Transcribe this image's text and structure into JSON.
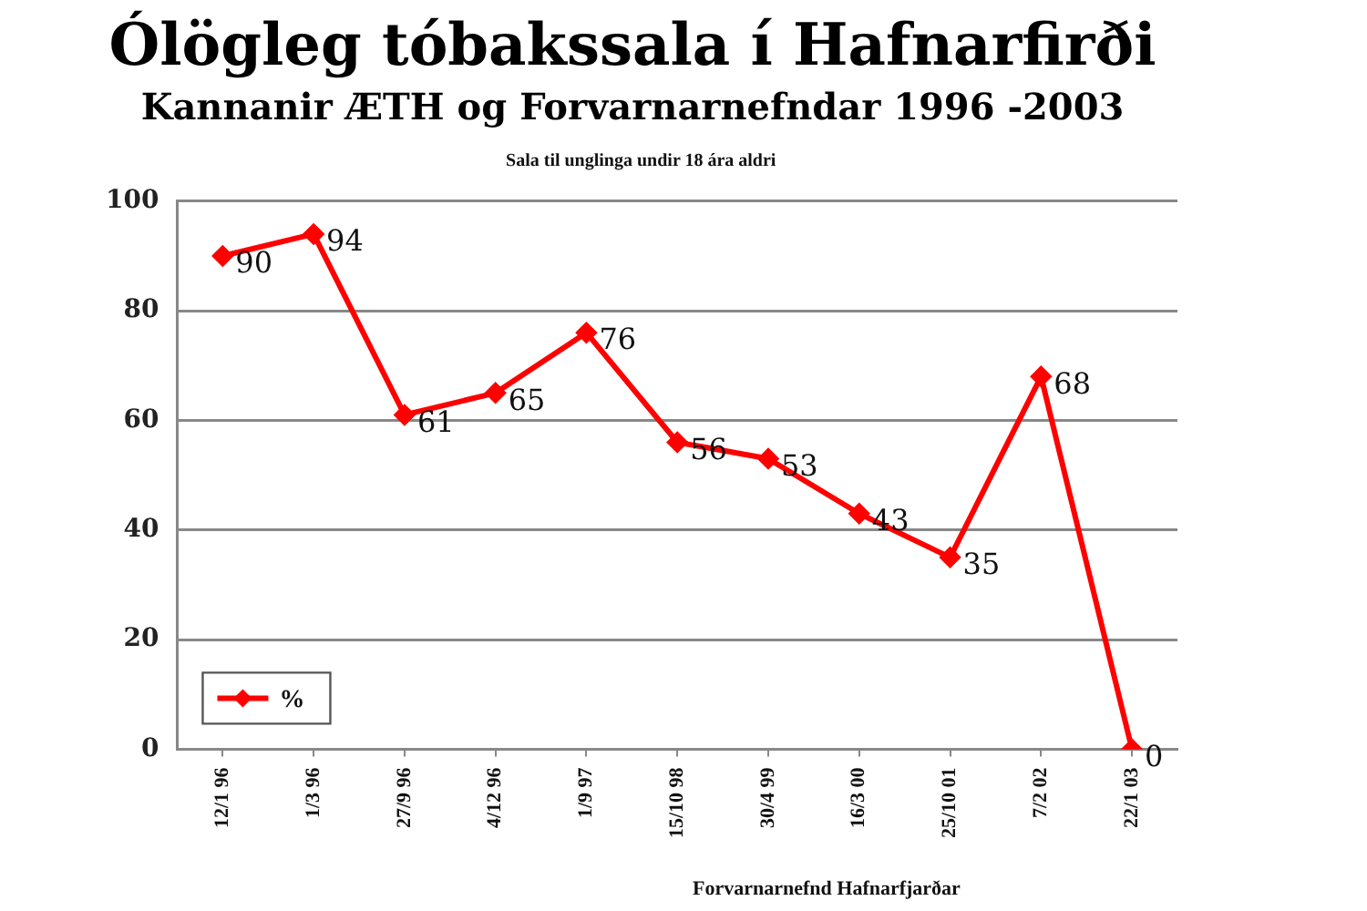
{
  "chart_data": {
    "type": "line",
    "title": "Ólögleg tóbakssala í Hafnarfirði",
    "subtitle": "Kannanir ÆTH og Forvarnarnefndar 1996 -2003",
    "annotations": [
      "Sala til unglinga undir 18 ára aldri",
      "Forvarnarnefnd Hafnarfjarðar"
    ],
    "categories": [
      "12/1 96",
      "1/3 96",
      "27/9 96",
      "4/12 96",
      "1/9 97",
      "15/10 98",
      "30/4 99",
      "16/3 00",
      "25/10 01",
      "7/2 02",
      "22/1 03"
    ],
    "series": [
      {
        "name": "%",
        "color": "#ff0000",
        "values": [
          90,
          94,
          61,
          65,
          76,
          56,
          53,
          43,
          35,
          68,
          0
        ]
      }
    ],
    "ylim": [
      0,
      100
    ],
    "yticks": [
      0,
      20,
      40,
      60,
      80,
      100
    ],
    "grid": "y",
    "legend": "bottom left",
    "marker": "diamond",
    "line_style": "solid",
    "data_labels": true
  }
}
